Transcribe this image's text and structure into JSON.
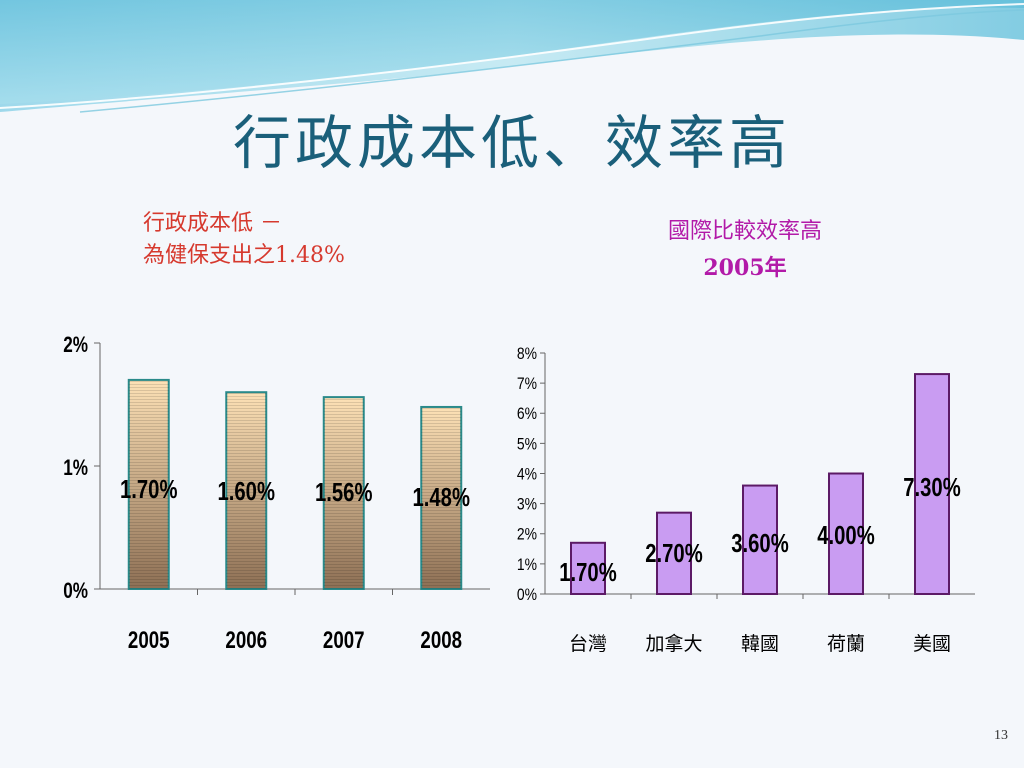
{
  "slide": {
    "title": "行政成本低、效率高",
    "left_caption": {
      "line1": "行政成本低 －",
      "line2": "為健保支出之1.48%"
    },
    "right_caption": {
      "line1": "國際比較效率高",
      "line2": "2005年"
    },
    "page_number": "13"
  },
  "colors": {
    "title": "#1a5f7a",
    "left_caption": "#d6392e",
    "right_caption": "#b21aa8",
    "bar_left_top": "#fde1b6",
    "bar_left_bottom": "#8e7055",
    "bar_left_border": "#2a8a8a",
    "bar_right_fill": "#c99cf2",
    "bar_right_border": "#5c1a66"
  },
  "chart_data": [
    {
      "type": "bar",
      "categories": [
        "2005",
        "2006",
        "2007",
        "2008"
      ],
      "values": [
        1.7,
        1.6,
        1.56,
        1.48
      ],
      "data_labels": [
        "1.70%",
        "1.60%",
        "1.56%",
        "1.48%"
      ],
      "ylim": [
        0,
        2
      ],
      "yticks": [
        "0%",
        "1%",
        "2%"
      ],
      "grid": false,
      "legend": "none"
    },
    {
      "type": "bar",
      "categories": [
        "台灣",
        "加拿大",
        "韓國",
        "荷蘭",
        "美國"
      ],
      "values": [
        1.7,
        2.7,
        3.6,
        4.0,
        7.3
      ],
      "data_labels": [
        "1.70%",
        "2.70%",
        "3.60%",
        "4.00%",
        "7.30%"
      ],
      "ylim": [
        0,
        8
      ],
      "yticks": [
        "0%",
        "1%",
        "2%",
        "3%",
        "4%",
        "5%",
        "6%",
        "7%",
        "8%"
      ],
      "grid": false,
      "legend": "none"
    }
  ]
}
